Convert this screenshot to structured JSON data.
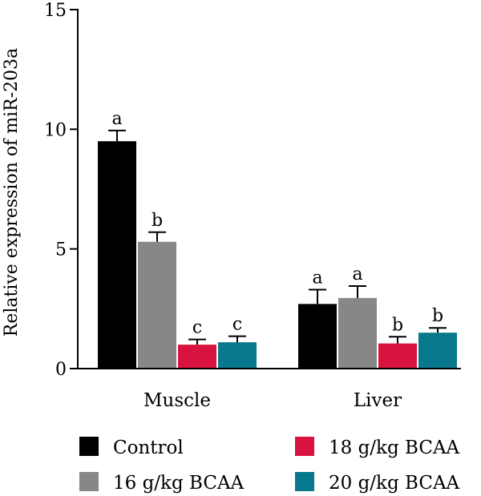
{
  "chart_data": {
    "type": "bar",
    "title": "",
    "xlabel": "",
    "ylabel": "Relative expression of miR-203a",
    "ylim": [
      0,
      15
    ],
    "yticks": [
      "0",
      "5",
      "10",
      "15"
    ],
    "categories": [
      "Muscle",
      "Liver"
    ],
    "series": [
      {
        "name": "Control",
        "color": "#000000",
        "values": [
          9.5,
          2.7
        ],
        "errors": [
          0.45,
          0.6
        ],
        "letters": [
          "a",
          "a"
        ]
      },
      {
        "name": "16 g/kg BCAA",
        "color": "#878787",
        "values": [
          5.3,
          2.95
        ],
        "errors": [
          0.4,
          0.5
        ],
        "letters": [
          "b",
          "a"
        ]
      },
      {
        "name": "18 g/kg BCAA",
        "color": "#d9133f",
        "values": [
          1.0,
          1.05
        ],
        "errors": [
          0.22,
          0.28
        ],
        "letters": [
          "c",
          "b"
        ]
      },
      {
        "name": "20 g/kg BCAA",
        "color": "#08788c",
        "values": [
          1.1,
          1.5
        ],
        "errors": [
          0.25,
          0.2
        ],
        "letters": [
          "c",
          "b"
        ]
      }
    ],
    "legend_position": "bottom",
    "grid": false
  }
}
